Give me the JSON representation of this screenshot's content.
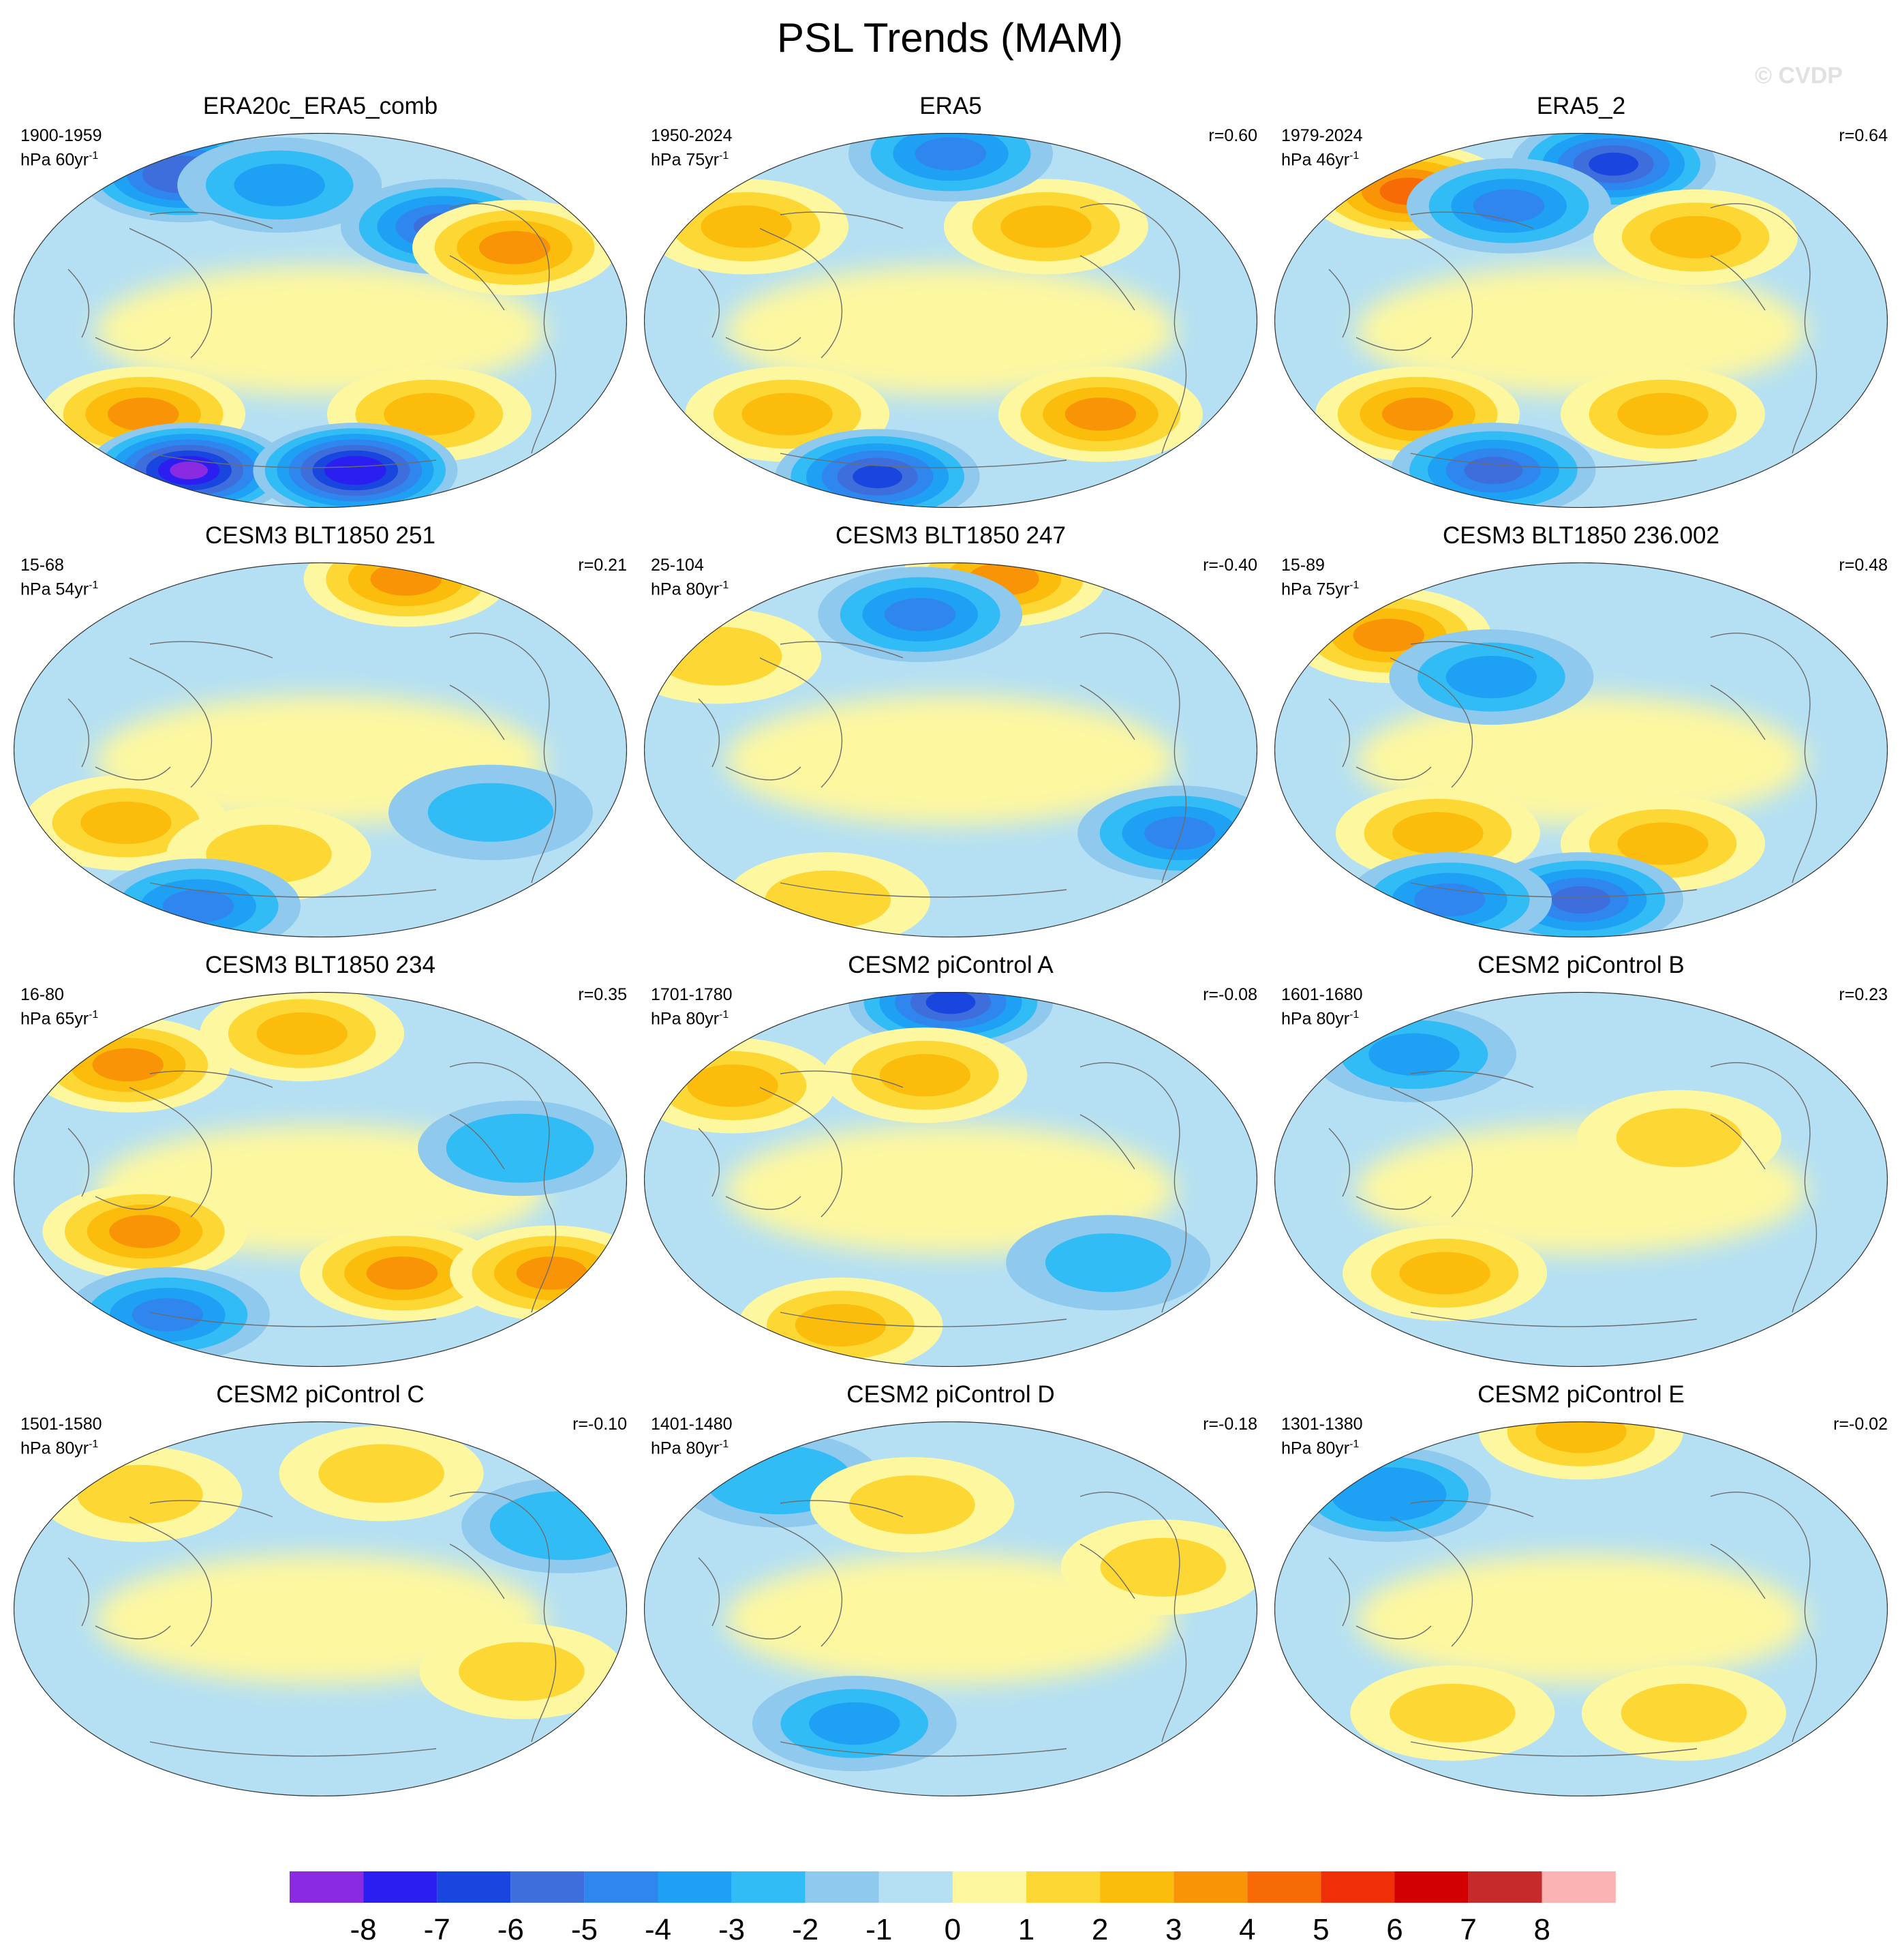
{
  "title": "PSL Trends (MAM)",
  "watermark": "© CVDP",
  "units_text": "hPa",
  "panels": [
    {
      "title": "ERA20c_ERA5_comb",
      "period": "1900-1959",
      "trend_label": "60yr",
      "corr": ""
    },
    {
      "title": "ERA5",
      "period": "1950-2024",
      "trend_label": "75yr",
      "corr": "r=0.60"
    },
    {
      "title": "ERA5_2",
      "period": "1979-2024",
      "trend_label": "46yr",
      "corr": "r=0.64"
    },
    {
      "title": "CESM3 BLT1850 251",
      "period": "15-68",
      "trend_label": "54yr",
      "corr": "r=0.21"
    },
    {
      "title": "CESM3 BLT1850 247",
      "period": "25-104",
      "trend_label": "80yr",
      "corr": "r=-0.40"
    },
    {
      "title": "CESM3 BLT1850 236.002",
      "period": "15-89",
      "trend_label": "75yr",
      "corr": "r=0.48"
    },
    {
      "title": "CESM3 BLT1850 234",
      "period": "16-80",
      "trend_label": "65yr",
      "corr": "r=0.35"
    },
    {
      "title": "CESM2 piControl A",
      "period": "1701-1780",
      "trend_label": "80yr",
      "corr": "r=-0.08"
    },
    {
      "title": "CESM2 piControl B",
      "period": "1601-1680",
      "trend_label": "80yr",
      "corr": "r=0.23"
    },
    {
      "title": "CESM2 piControl C",
      "period": "1501-1580",
      "trend_label": "80yr",
      "corr": "r=-0.10"
    },
    {
      "title": "CESM2 piControl D",
      "period": "1401-1480",
      "trend_label": "80yr",
      "corr": "r=-0.18"
    },
    {
      "title": "CESM2 piControl E",
      "period": "1301-1380",
      "trend_label": "80yr",
      "corr": "r=-0.02"
    }
  ],
  "colorbar": {
    "labels": [
      "-8",
      "-7",
      "-6",
      "-5",
      "-4",
      "-3",
      "-2",
      "-1",
      "0",
      "1",
      "2",
      "3",
      "4",
      "5",
      "6",
      "7",
      "8"
    ],
    "colors": [
      "#8a2be2",
      "#2b1ef0",
      "#1a46e0",
      "#3d6edc",
      "#2f86ee",
      "#1ea0f5",
      "#32bcf5",
      "#8fc9ee",
      "#b5e0f3",
      "#fdf7a0",
      "#fdd835",
      "#fbbc0b",
      "#f99406",
      "#f76a05",
      "#f02e08",
      "#d20000",
      "#c62a2a",
      "#fcb3b3"
    ]
  },
  "chart_data": {
    "type": "heatmap",
    "projection": "global equal-area ellipse (Pacific-centred)",
    "variable": "PSL trends, hPa per record length",
    "color_levels": [
      -8,
      -7,
      -6,
      -5,
      -4,
      -3,
      -2,
      -1,
      0,
      1,
      2,
      3,
      4,
      5,
      6,
      7,
      8
    ],
    "panels": [
      {
        "name": "ERA20c_ERA5_comb",
        "blobs": [
          {
            "lon": -150,
            "lat": 70,
            "value": -5.5
          },
          {
            "lon": 90,
            "lat": 45,
            "value": -5
          },
          {
            "lon": 130,
            "lat": 35,
            "value": 3.5
          },
          {
            "lon": -130,
            "lat": -45,
            "value": 3.5
          },
          {
            "lon": 80,
            "lat": -45,
            "value": 3
          },
          {
            "lon": -150,
            "lat": -72,
            "value": -8
          },
          {
            "lon": 40,
            "lat": -72,
            "value": -7.5
          },
          {
            "lon": -40,
            "lat": 65,
            "value": -3
          }
        ]
      },
      {
        "name": "ERA5",
        "blobs": [
          {
            "lon": 70,
            "lat": 45,
            "value": 3
          },
          {
            "lon": -150,
            "lat": 45,
            "value": 2.5
          },
          {
            "lon": -120,
            "lat": -45,
            "value": 3
          },
          {
            "lon": 110,
            "lat": -45,
            "value": 3.5
          },
          {
            "lon": 0,
            "lat": 80,
            "value": -4
          },
          {
            "lon": -90,
            "lat": -75,
            "value": -6
          }
        ]
      },
      {
        "name": "ERA5_2",
        "blobs": [
          {
            "lon": -160,
            "lat": 62,
            "value": 4.5
          },
          {
            "lon": 40,
            "lat": 75,
            "value": -6
          },
          {
            "lon": -60,
            "lat": 55,
            "value": -4
          },
          {
            "lon": -120,
            "lat": -45,
            "value": 3.5
          },
          {
            "lon": 60,
            "lat": -45,
            "value": 3
          },
          {
            "lon": 80,
            "lat": 40,
            "value": 3
          },
          {
            "lon": -100,
            "lat": -72,
            "value": -5
          }
        ]
      },
      {
        "name": "CESM3 BLT1850 251",
        "blobs": [
          {
            "lon": 130,
            "lat": 82,
            "value": 4
          },
          {
            "lon": -130,
            "lat": -35,
            "value": 2.5
          },
          {
            "lon": -40,
            "lat": -50,
            "value": 2
          },
          {
            "lon": -150,
            "lat": -75,
            "value": -4
          },
          {
            "lon": 110,
            "lat": -30,
            "value": -2
          }
        ]
      },
      {
        "name": "CESM3 BLT1850 247",
        "blobs": [
          {
            "lon": 80,
            "lat": 82,
            "value": 3.5
          },
          {
            "lon": -30,
            "lat": 65,
            "value": -4
          },
          {
            "lon": 160,
            "lat": -40,
            "value": -4
          },
          {
            "lon": -170,
            "lat": 45,
            "value": 2
          },
          {
            "lon": -140,
            "lat": -72,
            "value": 2
          }
        ]
      },
      {
        "name": "CESM3 BLT1850 236.002",
        "blobs": [
          {
            "lon": -160,
            "lat": 55,
            "value": 4
          },
          {
            "lon": -60,
            "lat": 35,
            "value": -3
          },
          {
            "lon": -100,
            "lat": -40,
            "value": 3
          },
          {
            "lon": 60,
            "lat": -45,
            "value": 3
          },
          {
            "lon": 0,
            "lat": -72,
            "value": -5
          },
          {
            "lon": -150,
            "lat": -72,
            "value": -4
          }
        ]
      },
      {
        "name": "CESM3 BLT1850 234",
        "blobs": [
          {
            "lon": -160,
            "lat": 55,
            "value": 3.5
          },
          {
            "lon": -110,
            "lat": -25,
            "value": 4
          },
          {
            "lon": 60,
            "lat": -45,
            "value": 3.5
          },
          {
            "lon": 170,
            "lat": -45,
            "value": 3.5
          },
          {
            "lon": -150,
            "lat": -65,
            "value": -4
          },
          {
            "lon": 120,
            "lat": 15,
            "value": -2.5
          },
          {
            "lon": -20,
            "lat": 70,
            "value": 3
          }
        ]
      },
      {
        "name": "CESM2 piControl A",
        "blobs": [
          {
            "lon": 0,
            "lat": 85,
            "value": -6
          },
          {
            "lon": -160,
            "lat": 45,
            "value": 2.5
          },
          {
            "lon": -20,
            "lat": 50,
            "value": 2.5
          },
          {
            "lon": -120,
            "lat": -70,
            "value": 2.5
          },
          {
            "lon": 110,
            "lat": -40,
            "value": -2
          }
        ]
      },
      {
        "name": "CESM2 piControl B",
        "blobs": [
          {
            "lon": -150,
            "lat": 60,
            "value": -3
          },
          {
            "lon": -100,
            "lat": -45,
            "value": 2.5
          },
          {
            "lon": 60,
            "lat": 20,
            "value": 1.5
          }
        ]
      },
      {
        "name": "CESM2 piControl C",
        "blobs": [
          {
            "lon": 60,
            "lat": 65,
            "value": 2
          },
          {
            "lon": -150,
            "lat": 55,
            "value": 2
          },
          {
            "lon": 170,
            "lat": 40,
            "value": -2.5
          },
          {
            "lon": 130,
            "lat": -30,
            "value": 1.5
          }
        ]
      },
      {
        "name": "CESM2 piControl D",
        "blobs": [
          {
            "lon": -160,
            "lat": 62,
            "value": -2.5
          },
          {
            "lon": -30,
            "lat": 50,
            "value": 2
          },
          {
            "lon": -80,
            "lat": -55,
            "value": -3
          },
          {
            "lon": 130,
            "lat": 20,
            "value": 1.5
          }
        ]
      },
      {
        "name": "CESM2 piControl E",
        "blobs": [
          {
            "lon": -160,
            "lat": 55,
            "value": -3.5
          },
          {
            "lon": 0,
            "lat": 85,
            "value": 2.5
          },
          {
            "lon": -100,
            "lat": -50,
            "value": 2
          },
          {
            "lon": 80,
            "lat": -50,
            "value": 2
          }
        ]
      }
    ]
  }
}
